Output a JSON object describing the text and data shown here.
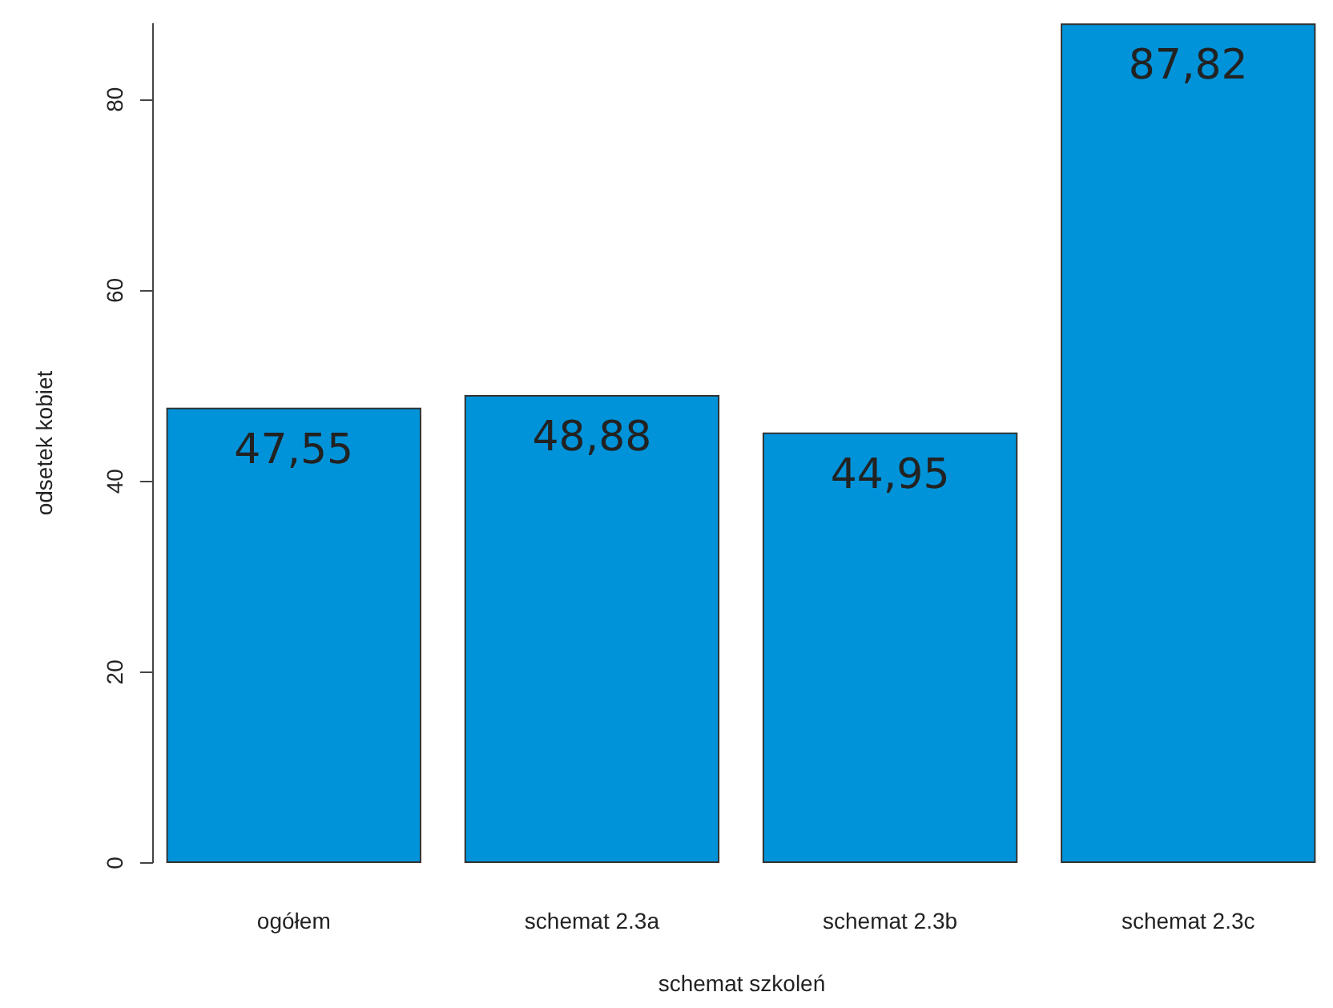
{
  "chart_data": {
    "type": "bar",
    "xlabel": "schemat szkoleń",
    "ylabel": "odsetek kobiet",
    "categories": [
      "ogółem",
      "schemat 2.3a",
      "schemat 2.3b",
      "schemat 2.3c"
    ],
    "values": [
      47.55,
      48.88,
      44.95,
      87.82
    ],
    "value_labels": [
      "47,55",
      "48,88",
      "44,95",
      "87,82"
    ],
    "color": "#0093d9",
    "ylim": [
      0,
      88
    ],
    "yticks": [
      0,
      20,
      40,
      60,
      80
    ],
    "grid": false
  }
}
